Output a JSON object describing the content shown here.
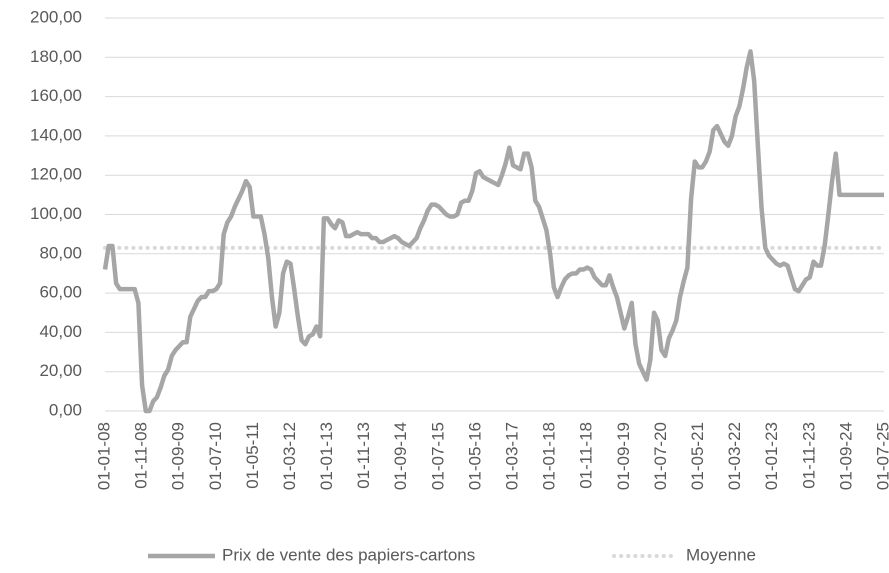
{
  "chart_data": {
    "type": "line",
    "categories": [
      "01-01-08",
      null,
      null,
      null,
      null,
      null,
      null,
      null,
      null,
      null,
      "01-11-08",
      null,
      null,
      null,
      null,
      null,
      null,
      null,
      null,
      null,
      "01-09-09",
      null,
      null,
      null,
      null,
      null,
      null,
      null,
      null,
      null,
      "01-07-10",
      null,
      null,
      null,
      null,
      null,
      null,
      null,
      null,
      null,
      "01-05-11",
      null,
      null,
      null,
      null,
      null,
      null,
      null,
      null,
      null,
      "01-03-12",
      null,
      null,
      null,
      null,
      null,
      null,
      null,
      null,
      null,
      "01-01-13",
      null,
      null,
      null,
      null,
      null,
      null,
      null,
      null,
      null,
      "01-11-13",
      null,
      null,
      null,
      null,
      null,
      null,
      null,
      null,
      null,
      "01-09-14",
      null,
      null,
      null,
      null,
      null,
      null,
      null,
      null,
      null,
      "01-07-15",
      null,
      null,
      null,
      null,
      null,
      null,
      null,
      null,
      null,
      "01-05-16",
      null,
      null,
      null,
      null,
      null,
      null,
      null,
      null,
      null,
      "01-03-17",
      null,
      null,
      null,
      null,
      null,
      null,
      null,
      null,
      null,
      "01-01-18",
      null,
      null,
      null,
      null,
      null,
      null,
      null,
      null,
      null,
      "01-11-18",
      null,
      null,
      null,
      null,
      null,
      null,
      null,
      null,
      null,
      "01-09-19",
      null,
      null,
      null,
      null,
      null,
      null,
      null,
      null,
      null,
      "01-07-20",
      null,
      null,
      null,
      null,
      null,
      null,
      null,
      null,
      null,
      "01-05-21",
      null,
      null,
      null,
      null,
      null,
      null,
      null,
      null,
      null,
      "01-03-22",
      null,
      null,
      null,
      null,
      null,
      null,
      null,
      null,
      null,
      "01-01-23",
      null,
      null,
      null,
      null,
      null,
      null,
      null,
      null,
      null,
      "01-11-23",
      null,
      null,
      null,
      null,
      null,
      null,
      null,
      null,
      null,
      "01-09-24",
      null,
      null,
      null,
      null,
      null,
      null,
      null,
      null,
      null,
      "01-07-25"
    ],
    "series": [
      {
        "name": "Prix de vente des papiers-cartons",
        "color": "#a6a6a6",
        "values": [
          72,
          84,
          84,
          65,
          62,
          62,
          62,
          62,
          62,
          55,
          13,
          0,
          0,
          5,
          7,
          12,
          18,
          21,
          28,
          31,
          33,
          35,
          35,
          48,
          52,
          56,
          58,
          58,
          61,
          61,
          62,
          65,
          90,
          96,
          99,
          104,
          108,
          112,
          117,
          114,
          99,
          99,
          99,
          90,
          78,
          58,
          43,
          50,
          70,
          76,
          75,
          62,
          48,
          36,
          34,
          38,
          39,
          43,
          38,
          98,
          98,
          95,
          93,
          97,
          96,
          89,
          89,
          90,
          91,
          90,
          90,
          90,
          88,
          88,
          86,
          86,
          87,
          88,
          89,
          88,
          86,
          85,
          84,
          86,
          88,
          93,
          97,
          102,
          105,
          105,
          104,
          102,
          100,
          99,
          99,
          100,
          106,
          107,
          107,
          112,
          121,
          122,
          119,
          118,
          117,
          116,
          115,
          120,
          126,
          134,
          125,
          124,
          123,
          131,
          131,
          124,
          107,
          104,
          98,
          92,
          80,
          63,
          58,
          63,
          67,
          69,
          70,
          70,
          72,
          72,
          73,
          72,
          68,
          66,
          64,
          64,
          69,
          63,
          58,
          50,
          42,
          48,
          55,
          34,
          24,
          20,
          16,
          26,
          50,
          46,
          31,
          28,
          37,
          41,
          46,
          58,
          66,
          73,
          108,
          127,
          124,
          124,
          127,
          132,
          143,
          145,
          141,
          137,
          135,
          140,
          150,
          155,
          164,
          175,
          183,
          168,
          135,
          103,
          83,
          79,
          77,
          75,
          74,
          75,
          74,
          68,
          62,
          61,
          64,
          67,
          68,
          76,
          74,
          74,
          84,
          100,
          117,
          131,
          110,
          110,
          110,
          110,
          110,
          110,
          110,
          110,
          110,
          110,
          110,
          110,
          110
        ]
      }
    ],
    "reference_lines": [
      {
        "name": "Moyenne",
        "value": 83,
        "color": "#d9d9d9",
        "style": "dotted"
      }
    ],
    "ylim": [
      0,
      200
    ],
    "yticks": [
      {
        "value": 0,
        "label": "0,00"
      },
      {
        "value": 20,
        "label": "20,00"
      },
      {
        "value": 40,
        "label": "40,00"
      },
      {
        "value": 60,
        "label": "60,00"
      },
      {
        "value": 80,
        "label": "80,00"
      },
      {
        "value": 100,
        "label": "100,00"
      },
      {
        "value": 120,
        "label": "120,00"
      },
      {
        "value": 140,
        "label": "140,00"
      },
      {
        "value": 160,
        "label": "160,00"
      },
      {
        "value": 180,
        "label": "180,00"
      },
      {
        "value": 200,
        "label": "200,00"
      }
    ],
    "grid": true,
    "legend": "bottom"
  }
}
